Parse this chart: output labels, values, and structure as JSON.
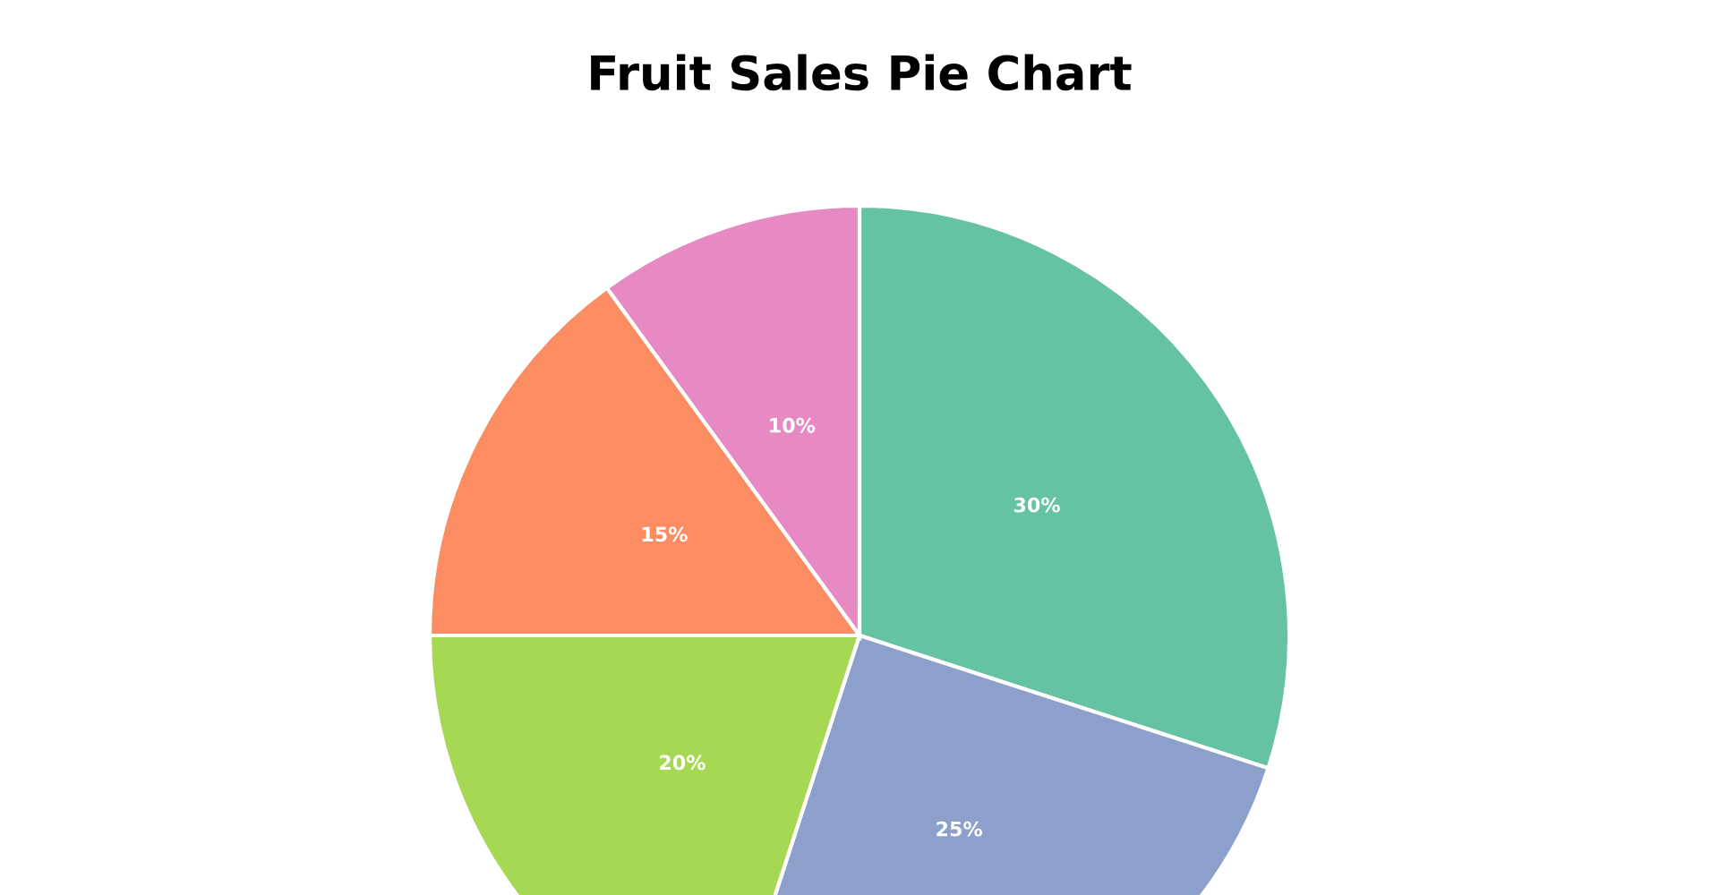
{
  "chart_data": {
    "type": "pie",
    "title": "Fruit Sales Pie Chart",
    "categories": [
      null,
      null,
      null,
      null,
      null
    ],
    "values": [
      30,
      25,
      20,
      15,
      10
    ],
    "colors": [
      "#66c2a5",
      "#8da0cb",
      "#a6d854",
      "#fc8d62",
      "#e78ac3"
    ],
    "value_labels": [
      "30%",
      "25%",
      "20%",
      "15%",
      "10%"
    ],
    "legend": false
  }
}
